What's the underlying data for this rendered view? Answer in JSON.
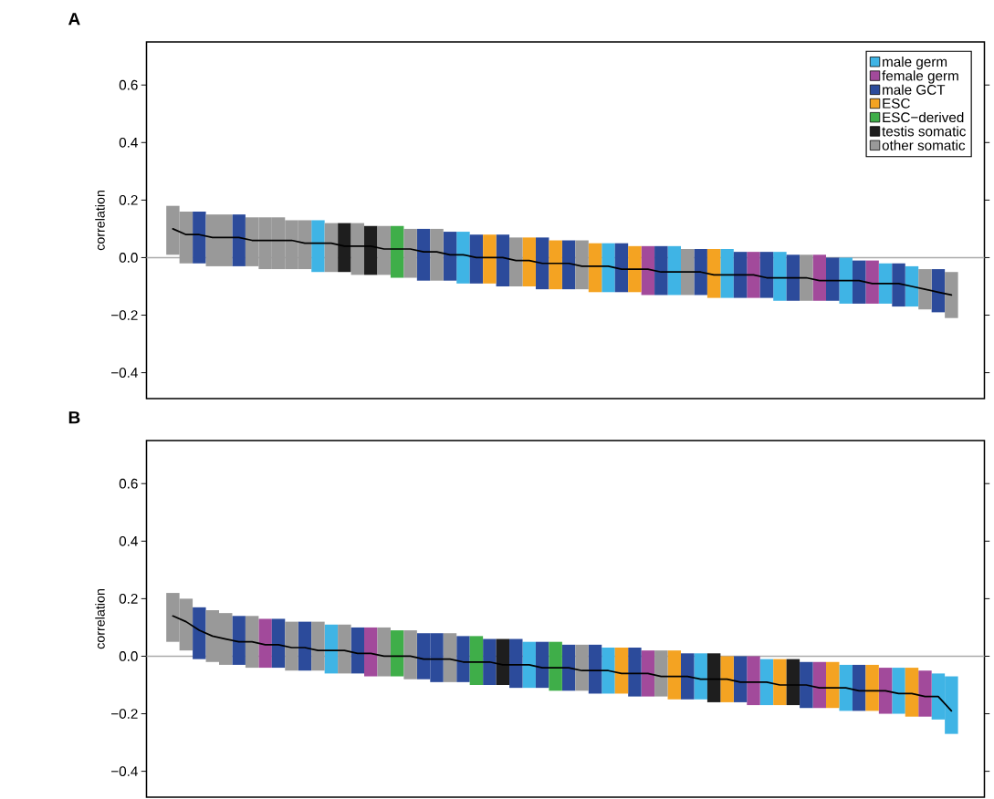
{
  "chart_data": [
    {
      "type": "bar",
      "title": "A",
      "ylabel": "correlation",
      "legend": "top right",
      "ylim": [
        -0.49,
        0.75
      ],
      "yticks": [
        {
          "value": -0.4,
          "label": "−0.4"
        },
        {
          "value": -0.2,
          "label": "−0.2"
        },
        {
          "value": 0.0,
          "label": "0.0"
        },
        {
          "value": 0.2,
          "label": "0.2"
        },
        {
          "value": 0.4,
          "label": "0.4"
        },
        {
          "value": 0.6,
          "label": "0.6"
        }
      ],
      "categories": [
        null,
        null,
        null,
        null,
        null,
        null,
        null,
        null,
        null,
        null,
        null,
        null,
        null,
        null,
        null,
        null,
        null,
        null,
        null,
        null,
        null,
        null,
        null,
        null,
        null,
        null,
        null,
        null,
        null,
        null,
        null,
        null,
        null,
        null,
        null,
        null,
        null,
        null,
        null,
        null,
        null,
        null,
        null,
        null,
        null,
        null,
        null,
        null,
        null,
        null,
        null,
        null,
        null,
        null,
        null,
        null,
        null,
        null,
        null,
        null
      ],
      "ref_lines": [
        {
          "axis": "y",
          "value": 0,
          "color": "#aaaaaa"
        }
      ],
      "series": [
        {
          "name": "male germ",
          "color": "#3fb4e5",
          "values": [
            null,
            null,
            null,
            null,
            null,
            null,
            null,
            null,
            null,
            null,
            null,
            0.18,
            null,
            null,
            null,
            null,
            null,
            null,
            null,
            null,
            null,
            null,
            0.18,
            null,
            null,
            null,
            null,
            null,
            null,
            null,
            null,
            null,
            null,
            0.17,
            null,
            null,
            null,
            null,
            0.17,
            null,
            null,
            null,
            0.17,
            null,
            null,
            null,
            0.17,
            null,
            null,
            null,
            null,
            0.16,
            null,
            null,
            0.14,
            null,
            0.14,
            null,
            null,
            null
          ],
          "base": [
            null,
            null,
            null,
            null,
            null,
            null,
            null,
            null,
            null,
            null,
            null,
            -0.05,
            null,
            null,
            null,
            null,
            null,
            null,
            null,
            null,
            null,
            null,
            -0.09,
            null,
            null,
            null,
            null,
            null,
            null,
            null,
            null,
            null,
            null,
            -0.12,
            null,
            null,
            null,
            null,
            -0.13,
            null,
            null,
            null,
            -0.14,
            null,
            null,
            null,
            -0.15,
            null,
            null,
            null,
            null,
            -0.16,
            null,
            null,
            -0.16,
            null,
            -0.17,
            null,
            null,
            null
          ]
        },
        {
          "name": "female germ",
          "color": "#a24a9b",
          "values": [
            null,
            null,
            null,
            null,
            null,
            null,
            null,
            null,
            null,
            null,
            null,
            null,
            null,
            null,
            null,
            null,
            null,
            null,
            null,
            null,
            null,
            null,
            null,
            null,
            null,
            null,
            null,
            null,
            null,
            null,
            null,
            null,
            null,
            null,
            null,
            null,
            0.17,
            null,
            null,
            null,
            null,
            null,
            null,
            null,
            0.16,
            null,
            null,
            null,
            null,
            0.16,
            null,
            null,
            null,
            0.15,
            null,
            null,
            null,
            null,
            null,
            null
          ],
          "base": [
            null,
            null,
            null,
            null,
            null,
            null,
            null,
            null,
            null,
            null,
            null,
            null,
            null,
            null,
            null,
            null,
            null,
            null,
            null,
            null,
            null,
            null,
            null,
            null,
            null,
            null,
            null,
            null,
            null,
            null,
            null,
            null,
            null,
            null,
            null,
            null,
            -0.13,
            null,
            null,
            null,
            null,
            null,
            null,
            null,
            -0.14,
            null,
            null,
            null,
            null,
            -0.15,
            null,
            null,
            null,
            -0.16,
            null,
            null,
            null,
            null,
            null,
            null
          ]
        },
        {
          "name": "male GCT",
          "color": "#2c4b9b",
          "values": [
            null,
            null,
            0.18,
            null,
            null,
            0.18,
            null,
            null,
            null,
            null,
            null,
            null,
            null,
            null,
            null,
            null,
            null,
            null,
            null,
            0.18,
            null,
            0.17,
            null,
            0.17,
            null,
            0.18,
            null,
            null,
            0.18,
            null,
            0.17,
            null,
            null,
            null,
            0.17,
            null,
            null,
            0.17,
            null,
            null,
            0.16,
            null,
            null,
            0.16,
            null,
            0.16,
            null,
            0.16,
            null,
            null,
            0.15,
            null,
            0.15,
            null,
            null,
            0.15,
            null,
            null,
            0.15,
            null
          ],
          "base": [
            null,
            null,
            -0.02,
            null,
            null,
            -0.03,
            null,
            null,
            null,
            null,
            null,
            null,
            null,
            null,
            null,
            null,
            null,
            null,
            null,
            -0.08,
            null,
            -0.08,
            null,
            -0.09,
            null,
            -0.1,
            null,
            null,
            -0.11,
            null,
            -0.11,
            null,
            null,
            null,
            -0.12,
            null,
            null,
            -0.13,
            null,
            null,
            -0.13,
            null,
            null,
            -0.14,
            null,
            -0.14,
            null,
            -0.15,
            null,
            null,
            -0.15,
            null,
            -0.16,
            null,
            null,
            -0.17,
            null,
            null,
            -0.19,
            null
          ]
        },
        {
          "name": "ESC",
          "color": "#f4a322",
          "values": [
            null,
            null,
            null,
            null,
            null,
            null,
            null,
            null,
            null,
            null,
            null,
            null,
            null,
            null,
            null,
            null,
            null,
            null,
            null,
            null,
            null,
            null,
            null,
            null,
            0.17,
            null,
            null,
            0.17,
            null,
            0.17,
            null,
            null,
            0.17,
            null,
            null,
            0.16,
            null,
            null,
            null,
            null,
            null,
            0.17,
            null,
            null,
            null,
            null,
            null,
            null,
            null,
            null,
            null,
            null,
            null,
            null,
            null,
            null,
            null,
            null,
            null,
            null
          ],
          "base": [
            null,
            null,
            null,
            null,
            null,
            null,
            null,
            null,
            null,
            null,
            null,
            null,
            null,
            null,
            null,
            null,
            null,
            null,
            null,
            null,
            null,
            null,
            null,
            null,
            -0.09,
            null,
            null,
            -0.1,
            null,
            -0.11,
            null,
            null,
            -0.12,
            null,
            null,
            -0.12,
            null,
            null,
            null,
            null,
            null,
            -0.14,
            null,
            null,
            null,
            null,
            null,
            null,
            null,
            null,
            null,
            null,
            null,
            null,
            null,
            null,
            null,
            null,
            null,
            null
          ]
        },
        {
          "name": "ESC−derived",
          "color": "#3fae49",
          "values": [
            null,
            null,
            null,
            null,
            null,
            null,
            null,
            null,
            null,
            null,
            null,
            null,
            null,
            null,
            null,
            null,
            null,
            0.18,
            null,
            null,
            null,
            null,
            null,
            null,
            null,
            null,
            null,
            null,
            null,
            null,
            null,
            null,
            null,
            null,
            null,
            null,
            null,
            null,
            null,
            null,
            null,
            null,
            null,
            null,
            null,
            null,
            null,
            null,
            null,
            null,
            null,
            null,
            null,
            null,
            null,
            null,
            null,
            null,
            null,
            null
          ],
          "base": [
            null,
            null,
            null,
            null,
            null,
            null,
            null,
            null,
            null,
            null,
            null,
            null,
            null,
            null,
            null,
            null,
            null,
            -0.07,
            null,
            null,
            null,
            null,
            null,
            null,
            null,
            null,
            null,
            null,
            null,
            null,
            null,
            null,
            null,
            null,
            null,
            null,
            null,
            null,
            null,
            null,
            null,
            null,
            null,
            null,
            null,
            null,
            null,
            null,
            null,
            null,
            null,
            null,
            null,
            null,
            null,
            null,
            null,
            null,
            null,
            null
          ]
        },
        {
          "name": "testis somatic",
          "color": "#1e1e1e",
          "values": [
            null,
            null,
            null,
            null,
            null,
            null,
            null,
            null,
            null,
            null,
            null,
            null,
            null,
            0.17,
            null,
            0.17,
            null,
            null,
            null,
            null,
            null,
            null,
            null,
            null,
            null,
            null,
            null,
            null,
            null,
            null,
            null,
            null,
            null,
            null,
            null,
            null,
            null,
            null,
            null,
            null,
            null,
            null,
            null,
            null,
            null,
            null,
            null,
            null,
            null,
            null,
            null,
            null,
            null,
            null,
            null,
            null,
            null,
            null,
            null,
            null
          ],
          "base": [
            null,
            null,
            null,
            null,
            null,
            null,
            null,
            null,
            null,
            null,
            null,
            null,
            null,
            -0.05,
            null,
            -0.06,
            null,
            null,
            null,
            null,
            null,
            null,
            null,
            null,
            null,
            null,
            null,
            null,
            null,
            null,
            null,
            null,
            null,
            null,
            null,
            null,
            null,
            null,
            null,
            null,
            null,
            null,
            null,
            null,
            null,
            null,
            null,
            null,
            null,
            null,
            null,
            null,
            null,
            null,
            null,
            null,
            null,
            null,
            null,
            null
          ]
        },
        {
          "name": "other somatic",
          "color": "#999999",
          "values": [
            0.17,
            0.18,
            null,
            0.18,
            0.18,
            null,
            0.17,
            0.18,
            0.18,
            0.17,
            0.17,
            null,
            0.17,
            null,
            0.18,
            null,
            0.17,
            null,
            0.17,
            null,
            0.18,
            null,
            null,
            null,
            null,
            null,
            0.17,
            null,
            null,
            null,
            null,
            0.17,
            null,
            null,
            null,
            null,
            null,
            null,
            null,
            0.16,
            null,
            null,
            null,
            null,
            null,
            null,
            null,
            null,
            0.16,
            null,
            null,
            null,
            null,
            null,
            null,
            null,
            null,
            0.14,
            null,
            0.16
          ],
          "base": [
            0.01,
            -0.02,
            null,
            -0.03,
            -0.03,
            null,
            -0.03,
            -0.04,
            -0.04,
            -0.04,
            -0.04,
            null,
            -0.05,
            null,
            -0.06,
            null,
            -0.06,
            null,
            -0.07,
            null,
            -0.08,
            null,
            null,
            null,
            null,
            null,
            -0.1,
            null,
            null,
            null,
            null,
            -0.11,
            null,
            null,
            null,
            null,
            null,
            null,
            null,
            -0.13,
            null,
            null,
            null,
            null,
            null,
            null,
            null,
            null,
            -0.15,
            null,
            null,
            null,
            null,
            null,
            null,
            null,
            null,
            -0.18,
            null,
            -0.21
          ]
        },
        {
          "type": "line",
          "color": "#000000",
          "values": [
            0.1,
            0.08,
            0.08,
            0.07,
            0.07,
            0.07,
            0.06,
            0.06,
            0.06,
            0.06,
            0.05,
            0.05,
            0.05,
            0.04,
            0.04,
            0.04,
            0.03,
            0.03,
            0.03,
            0.02,
            0.02,
            0.01,
            0.01,
            0.0,
            0.0,
            0.0,
            -0.01,
            -0.01,
            -0.02,
            -0.02,
            -0.02,
            -0.03,
            -0.03,
            -0.03,
            -0.04,
            -0.04,
            -0.04,
            -0.05,
            -0.05,
            -0.05,
            -0.05,
            -0.06,
            -0.06,
            -0.06,
            -0.06,
            -0.07,
            -0.07,
            -0.07,
            -0.07,
            -0.08,
            -0.08,
            -0.08,
            -0.08,
            -0.09,
            -0.09,
            -0.09,
            -0.1,
            -0.11,
            -0.12,
            -0.13
          ]
        }
      ]
    },
    {
      "type": "bar",
      "title": "B",
      "ylabel": "correlation",
      "ylim": [
        -0.49,
        0.75
      ],
      "yticks": [
        {
          "value": -0.4,
          "label": "−0.4"
        },
        {
          "value": -0.2,
          "label": "−0.2"
        },
        {
          "value": 0.0,
          "label": "0.0"
        },
        {
          "value": 0.2,
          "label": "0.2"
        },
        {
          "value": 0.4,
          "label": "0.4"
        },
        {
          "value": 0.6,
          "label": "0.6"
        }
      ],
      "categories": [
        null,
        null,
        null,
        null,
        null,
        null,
        null,
        null,
        null,
        null,
        null,
        null,
        null,
        null,
        null,
        null,
        null,
        null,
        null,
        null,
        null,
        null,
        null,
        null,
        null,
        null,
        null,
        null,
        null,
        null,
        null,
        null,
        null,
        null,
        null,
        null,
        null,
        null,
        null,
        null,
        null,
        null,
        null,
        null,
        null,
        null,
        null,
        null,
        null,
        null,
        null,
        null,
        null,
        null,
        null,
        null,
        null,
        null,
        null,
        null
      ],
      "ref_lines": [
        {
          "axis": "y",
          "value": 0,
          "color": "#aaaaaa"
        }
      ],
      "series": [
        {
          "color": "#3fb4e5",
          "values": [
            null,
            null,
            null,
            null,
            null,
            null,
            null,
            null,
            null,
            null,
            null,
            null,
            0.17,
            null,
            null,
            null,
            null,
            null,
            null,
            null,
            null,
            null,
            null,
            null,
            null,
            null,
            null,
            0.16,
            null,
            null,
            null,
            null,
            null,
            0.16,
            null,
            null,
            null,
            null,
            null,
            null,
            0.16,
            null,
            null,
            null,
            null,
            0.16,
            null,
            null,
            null,
            null,
            null,
            0.16,
            null,
            null,
            null,
            0.16,
            null,
            null,
            0.16,
            0.2
          ],
          "base": [
            null,
            null,
            null,
            null,
            null,
            null,
            null,
            null,
            null,
            null,
            null,
            null,
            -0.06,
            null,
            null,
            null,
            null,
            null,
            null,
            null,
            null,
            null,
            null,
            null,
            null,
            null,
            null,
            -0.11,
            null,
            null,
            null,
            null,
            null,
            -0.13,
            null,
            null,
            null,
            null,
            null,
            null,
            -0.15,
            null,
            null,
            null,
            null,
            -0.17,
            null,
            null,
            null,
            null,
            null,
            -0.19,
            null,
            null,
            null,
            -0.2,
            null,
            null,
            -0.22,
            -0.27
          ]
        },
        {
          "color": "#a24a9b",
          "values": [
            null,
            null,
            null,
            null,
            null,
            null,
            null,
            0.17,
            null,
            null,
            null,
            null,
            null,
            null,
            null,
            0.17,
            null,
            null,
            null,
            null,
            null,
            null,
            null,
            null,
            null,
            null,
            null,
            null,
            null,
            null,
            null,
            null,
            null,
            null,
            null,
            null,
            0.16,
            null,
            null,
            null,
            null,
            null,
            null,
            null,
            0.17,
            null,
            null,
            null,
            null,
            0.16,
            null,
            null,
            null,
            null,
            0.16,
            null,
            null,
            0.16,
            null,
            null
          ],
          "base": [
            null,
            null,
            null,
            null,
            null,
            null,
            null,
            -0.04,
            null,
            null,
            null,
            null,
            null,
            null,
            null,
            -0.07,
            null,
            null,
            null,
            null,
            null,
            null,
            null,
            null,
            null,
            null,
            null,
            null,
            null,
            null,
            null,
            null,
            null,
            null,
            null,
            null,
            -0.14,
            null,
            null,
            null,
            null,
            null,
            null,
            null,
            -0.17,
            null,
            null,
            null,
            null,
            -0.18,
            null,
            null,
            null,
            null,
            -0.2,
            null,
            null,
            -0.21,
            null,
            null
          ]
        },
        {
          "color": "#2c4b9b",
          "values": [
            null,
            null,
            0.18,
            null,
            null,
            0.17,
            null,
            null,
            0.17,
            null,
            0.17,
            null,
            null,
            null,
            0.16,
            null,
            null,
            null,
            null,
            0.16,
            0.17,
            null,
            0.16,
            null,
            0.16,
            null,
            0.17,
            null,
            0.16,
            null,
            0.16,
            null,
            0.17,
            null,
            null,
            0.17,
            null,
            null,
            null,
            0.16,
            null,
            null,
            null,
            0.16,
            null,
            null,
            null,
            null,
            0.16,
            null,
            null,
            null,
            0.16,
            null,
            null,
            null,
            null,
            null,
            null,
            null
          ],
          "base": [
            null,
            null,
            -0.01,
            null,
            null,
            -0.03,
            null,
            null,
            -0.04,
            null,
            -0.05,
            null,
            null,
            null,
            -0.06,
            null,
            null,
            null,
            null,
            -0.08,
            -0.09,
            null,
            -0.09,
            null,
            -0.1,
            null,
            -0.11,
            null,
            -0.11,
            null,
            -0.12,
            null,
            -0.13,
            null,
            null,
            -0.14,
            null,
            null,
            null,
            -0.15,
            null,
            null,
            null,
            -0.16,
            null,
            null,
            null,
            null,
            -0.18,
            null,
            null,
            null,
            -0.19,
            null,
            null,
            null,
            null,
            null,
            null,
            null
          ]
        },
        {
          "color": "#f4a322",
          "values": [
            null,
            null,
            null,
            null,
            null,
            null,
            null,
            null,
            null,
            null,
            null,
            null,
            null,
            null,
            null,
            null,
            null,
            null,
            null,
            null,
            null,
            null,
            null,
            null,
            null,
            null,
            null,
            null,
            null,
            null,
            null,
            null,
            null,
            null,
            0.16,
            null,
            null,
            null,
            0.17,
            null,
            null,
            null,
            0.16,
            null,
            null,
            null,
            0.16,
            null,
            null,
            null,
            0.16,
            null,
            null,
            0.16,
            null,
            null,
            0.17,
            null,
            null,
            null
          ],
          "base": [
            null,
            null,
            null,
            null,
            null,
            null,
            null,
            null,
            null,
            null,
            null,
            null,
            null,
            null,
            null,
            null,
            null,
            null,
            null,
            null,
            null,
            null,
            null,
            null,
            null,
            null,
            null,
            null,
            null,
            null,
            null,
            null,
            null,
            null,
            -0.13,
            null,
            null,
            null,
            -0.15,
            null,
            null,
            null,
            -0.16,
            null,
            null,
            null,
            -0.17,
            null,
            null,
            null,
            -0.18,
            null,
            null,
            -0.19,
            null,
            null,
            -0.21,
            null,
            null,
            null
          ]
        },
        {
          "color": "#3fae49",
          "values": [
            null,
            null,
            null,
            null,
            null,
            null,
            null,
            null,
            null,
            null,
            null,
            null,
            null,
            null,
            null,
            null,
            null,
            0.16,
            null,
            null,
            null,
            null,
            null,
            0.17,
            null,
            null,
            null,
            null,
            null,
            0.17,
            null,
            null,
            null,
            null,
            null,
            null,
            null,
            null,
            null,
            null,
            null,
            null,
            null,
            null,
            null,
            null,
            null,
            null,
            null,
            null,
            null,
            null,
            null,
            null,
            null,
            null,
            null,
            null,
            null,
            null
          ],
          "base": [
            null,
            null,
            null,
            null,
            null,
            null,
            null,
            null,
            null,
            null,
            null,
            null,
            null,
            null,
            null,
            null,
            null,
            -0.07,
            null,
            null,
            null,
            null,
            null,
            -0.1,
            null,
            null,
            null,
            null,
            null,
            -0.12,
            null,
            null,
            null,
            null,
            null,
            null,
            null,
            null,
            null,
            null,
            null,
            null,
            null,
            null,
            null,
            null,
            null,
            null,
            null,
            null,
            null,
            null,
            null,
            null,
            null,
            null,
            null,
            null,
            null,
            null
          ]
        },
        {
          "color": "#1e1e1e",
          "values": [
            null,
            null,
            null,
            null,
            null,
            null,
            null,
            null,
            null,
            null,
            null,
            null,
            null,
            null,
            null,
            null,
            null,
            null,
            null,
            null,
            null,
            null,
            null,
            null,
            null,
            0.16,
            null,
            null,
            null,
            null,
            null,
            null,
            null,
            null,
            null,
            null,
            null,
            null,
            null,
            null,
            null,
            0.17,
            null,
            null,
            null,
            null,
            null,
            0.16,
            null,
            null,
            null,
            null,
            null,
            null,
            null,
            null,
            null,
            null,
            null,
            null
          ],
          "base": [
            null,
            null,
            null,
            null,
            null,
            null,
            null,
            null,
            null,
            null,
            null,
            null,
            null,
            null,
            null,
            null,
            null,
            null,
            null,
            null,
            null,
            null,
            null,
            null,
            null,
            -0.1,
            null,
            null,
            null,
            null,
            null,
            null,
            null,
            null,
            null,
            null,
            null,
            null,
            null,
            null,
            null,
            -0.16,
            null,
            null,
            null,
            null,
            null,
            -0.17,
            null,
            null,
            null,
            null,
            null,
            null,
            null,
            null,
            null,
            null,
            null,
            null
          ]
        },
        {
          "color": "#999999",
          "values": [
            0.17,
            0.18,
            null,
            0.18,
            0.18,
            null,
            0.18,
            null,
            null,
            0.17,
            null,
            0.17,
            null,
            0.17,
            null,
            null,
            0.17,
            null,
            0.17,
            null,
            null,
            0.17,
            null,
            null,
            null,
            null,
            null,
            null,
            null,
            null,
            null,
            0.16,
            null,
            null,
            null,
            null,
            null,
            0.16,
            null,
            null,
            null,
            null,
            null,
            null,
            null,
            null,
            null,
            null,
            null,
            null,
            null,
            null,
            null,
            null,
            null,
            null,
            null,
            null,
            null,
            null
          ],
          "base": [
            0.05,
            0.02,
            null,
            -0.02,
            -0.03,
            null,
            -0.04,
            null,
            null,
            -0.05,
            null,
            -0.05,
            null,
            -0.06,
            null,
            null,
            -0.07,
            null,
            -0.08,
            null,
            null,
            -0.09,
            null,
            null,
            null,
            null,
            null,
            null,
            null,
            null,
            null,
            -0.12,
            null,
            null,
            null,
            null,
            null,
            -0.14,
            null,
            null,
            null,
            null,
            null,
            null,
            null,
            null,
            null,
            null,
            null,
            null,
            null,
            null,
            null,
            null,
            null,
            null,
            null,
            null,
            null,
            null
          ]
        },
        {
          "type": "line",
          "color": "#000000",
          "values": [
            0.14,
            0.12,
            0.09,
            0.07,
            0.06,
            0.05,
            0.05,
            0.04,
            0.04,
            0.03,
            0.03,
            0.02,
            0.02,
            0.02,
            0.01,
            0.01,
            0.0,
            0.0,
            0.0,
            -0.01,
            -0.01,
            -0.01,
            -0.02,
            -0.02,
            -0.02,
            -0.03,
            -0.03,
            -0.03,
            -0.04,
            -0.04,
            -0.04,
            -0.05,
            -0.05,
            -0.05,
            -0.06,
            -0.06,
            -0.06,
            -0.07,
            -0.07,
            -0.07,
            -0.08,
            -0.08,
            -0.08,
            -0.09,
            -0.09,
            -0.09,
            -0.1,
            -0.1,
            -0.1,
            -0.11,
            -0.11,
            -0.11,
            -0.12,
            -0.12,
            -0.12,
            -0.13,
            -0.13,
            -0.14,
            -0.14,
            -0.19
          ]
        }
      ]
    }
  ]
}
